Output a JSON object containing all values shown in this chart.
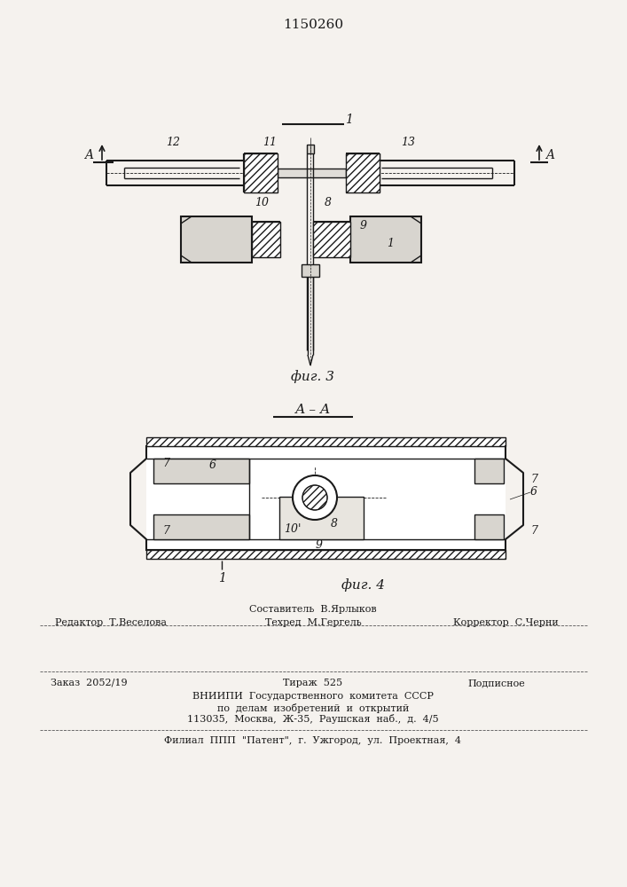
{
  "title": "1150260",
  "background_color": "#f5f2ee",
  "line_color": "#1a1a1a",
  "fig3_caption": "фиг. 3",
  "fig4_caption": "фиг. 4",
  "section_label": "А – А"
}
